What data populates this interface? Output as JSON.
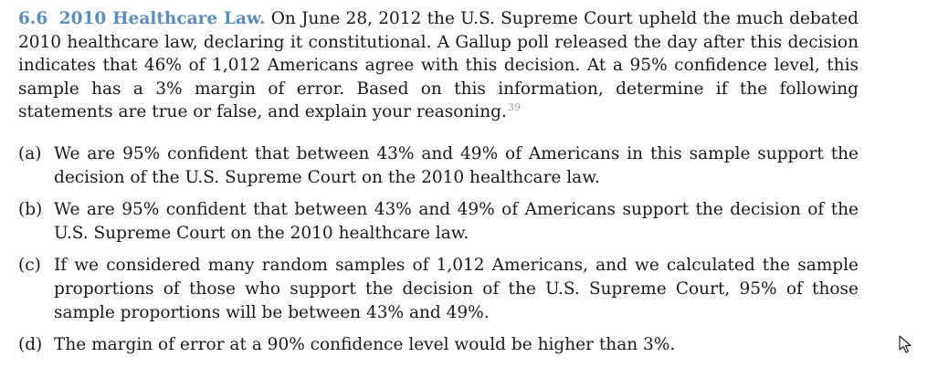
{
  "problem": {
    "number": "6.6",
    "title": "2010 Healthcare Law.",
    "body": "On June 28, 2012 the U.S. Supreme Court upheld the much debated 2010 healthcare law, declaring it constitutional. A Gallup poll released the day after this decision indicates that 46% of 1,012 Americans agree with this decision. At a 95% confidence level, this sample has a 3% margin of error. Based on this information, determine if the following statements are true or false, and explain your reasoning.",
    "footnote": "39"
  },
  "parts": [
    {
      "label": "(a)",
      "text": "We are 95% confident that between 43% and 49% of Americans in this sample support the decision of the U.S. Supreme Court on the 2010 healthcare law."
    },
    {
      "label": "(b)",
      "text": "We are 95% confident that between 43% and 49% of Americans support the decision of the U.S. Supreme Court on the 2010 healthcare law."
    },
    {
      "label": "(c)",
      "text": "If we considered many random samples of 1,012 Americans, and we calculated the sample proportions of those who support the decision of the U.S. Supreme Court, 95% of those sample proportions will be between 43% and 49%."
    },
    {
      "label": "(d)",
      "text": "The margin of error at a 90% confidence level would be higher than 3%."
    }
  ],
  "cursor": {
    "icon": "mouse-pointer-icon"
  }
}
